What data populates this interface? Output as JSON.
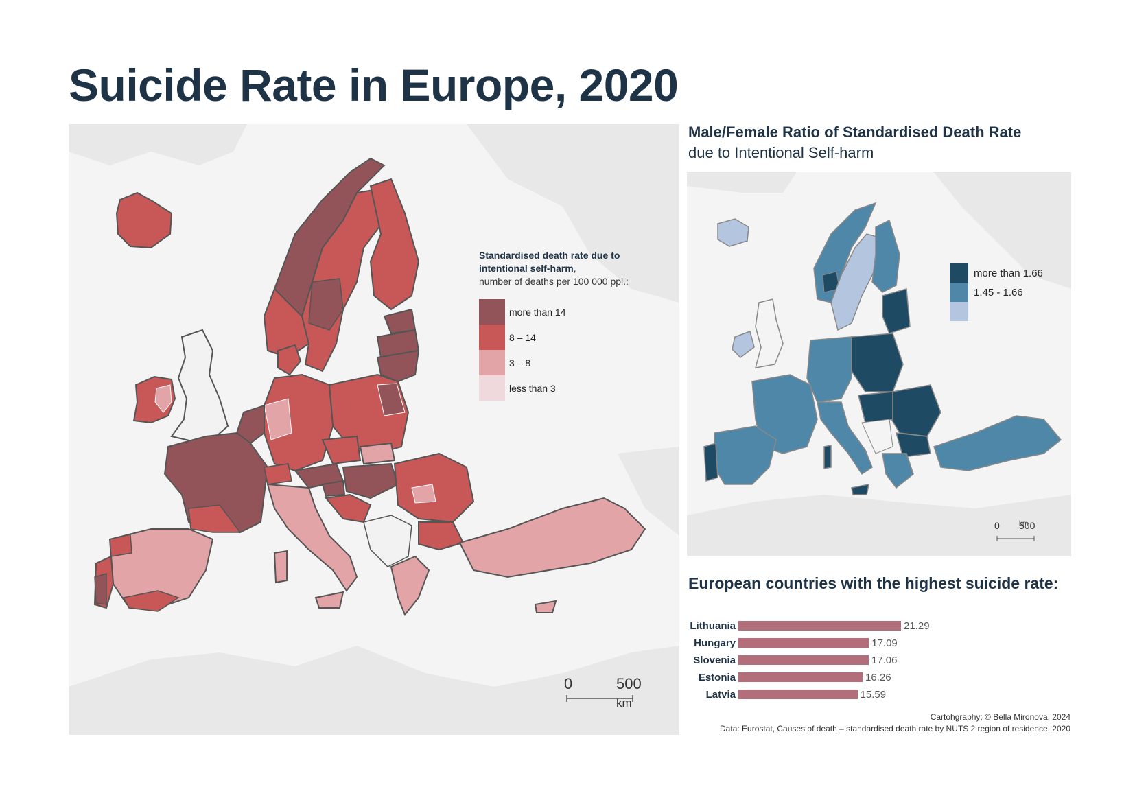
{
  "title": "Suicide Rate in Europe, 2020",
  "left_legend": {
    "title_bold": "Standardised death rate due to intentional self-harm",
    "title_after": ",",
    "subtitle": "number of deaths per 100 000 ppl.:",
    "items": [
      {
        "label": "more than 14",
        "color": "#925458"
      },
      {
        "label": "8 – 14",
        "color": "#c85758"
      },
      {
        "label": "3 – 8",
        "color": "#e2a4a6"
      },
      {
        "label": "less than 3",
        "color": "#efd9dc"
      }
    ]
  },
  "left_scale": {
    "zero": "0",
    "five_hundred": "500",
    "unit": "km"
  },
  "right_map": {
    "title_bold": "Male/Female Ratio of Standardised Death Rate",
    "title_regular": "due to Intentional Self-harm",
    "legend": [
      {
        "label": "more than 1.66",
        "color": "#1e4a64"
      },
      {
        "label": "1.45 - 1.66",
        "color": "#4f87a8"
      },
      {
        "label": "",
        "color": "#b4c5e0"
      }
    ],
    "scale": {
      "zero": "0",
      "five_hundred": "500",
      "unit": "km"
    }
  },
  "bars": {
    "title": "European countries with the highest suicide rate:",
    "color": "#b26e7a",
    "items": [
      {
        "country": "Lithuania",
        "value": 21.29
      },
      {
        "country": "Hungary",
        "value": 17.09
      },
      {
        "country": "Slovenia",
        "value": 17.06
      },
      {
        "country": "Estonia",
        "value": 16.26
      },
      {
        "country": "Latvia",
        "value": 15.59
      }
    ]
  },
  "credits": {
    "line1": "Cartohgraphy: © Bella Mironova, 2024",
    "line2": "Data: Eurostat, Causes of death – standardised death rate by NUTS 2 region of residence, 2020"
  },
  "map_colors": {
    "land_bg": "#e9e9e9",
    "sea": "#ffffff",
    "no_data": "#f2f2f2",
    "border": "#555555"
  }
}
